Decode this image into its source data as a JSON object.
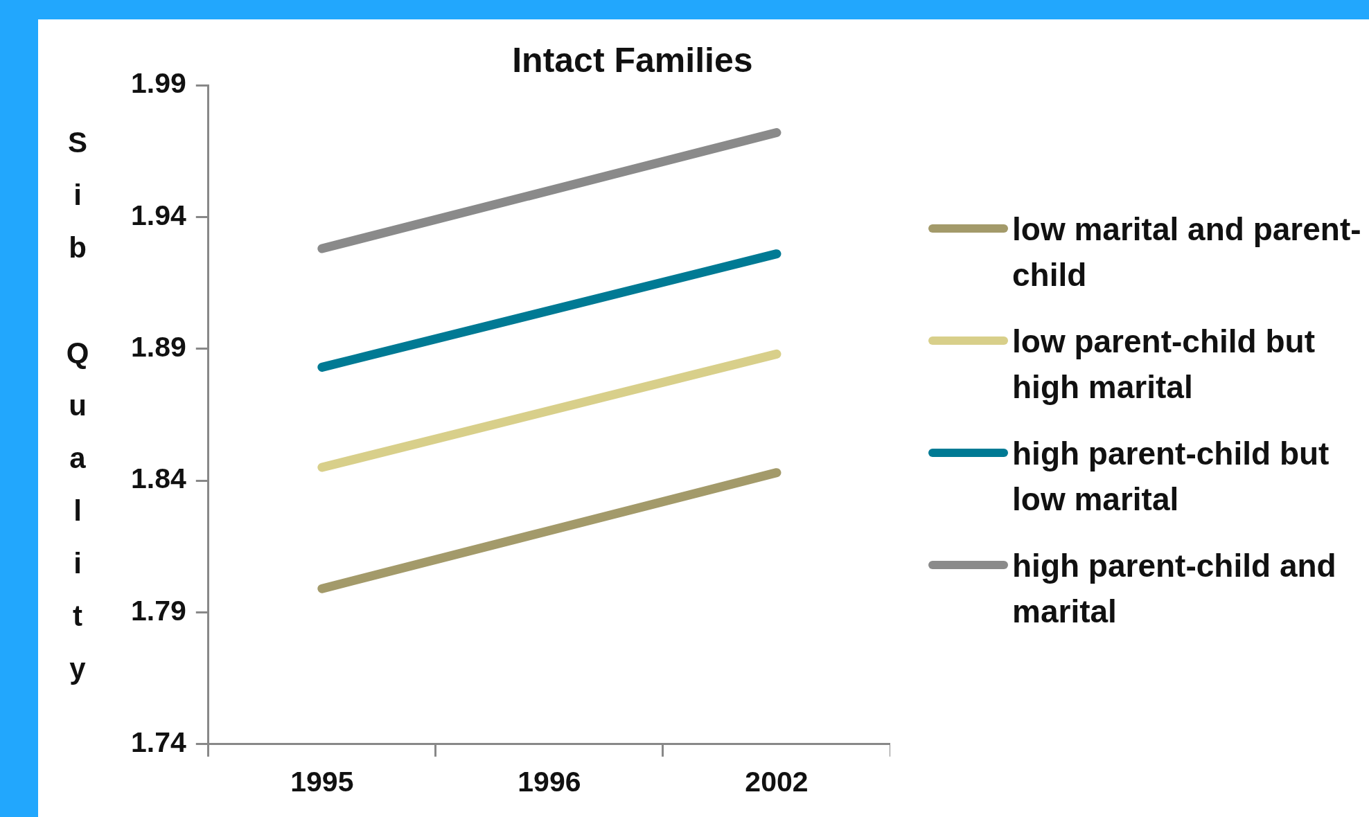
{
  "chart_data": {
    "type": "line",
    "title": "Intact Families",
    "ylabel": "Sib Quality",
    "categories": [
      "1995",
      "1996",
      "2002"
    ],
    "series": [
      {
        "name": "low marital and parent-child",
        "color": "#a39a6a",
        "values": [
          1.799,
          null,
          1.843
        ]
      },
      {
        "name": "low parent-child but high marital",
        "color": "#d8cf8a",
        "values": [
          1.845,
          null,
          1.888
        ]
      },
      {
        "name": "high parent-child but low marital",
        "color": "#007a94",
        "values": [
          1.883,
          null,
          1.926
        ]
      },
      {
        "name": "high parent-child and marital",
        "color": "#8a8a8a",
        "values": [
          1.928,
          null,
          1.972
        ]
      }
    ],
    "ylim": [
      1.74,
      1.99
    ],
    "yticks": [
      1.74,
      1.79,
      1.84,
      1.89,
      1.94,
      1.99
    ],
    "grid": false,
    "legend": "right",
    "marker": "none",
    "line_style": "solid"
  }
}
